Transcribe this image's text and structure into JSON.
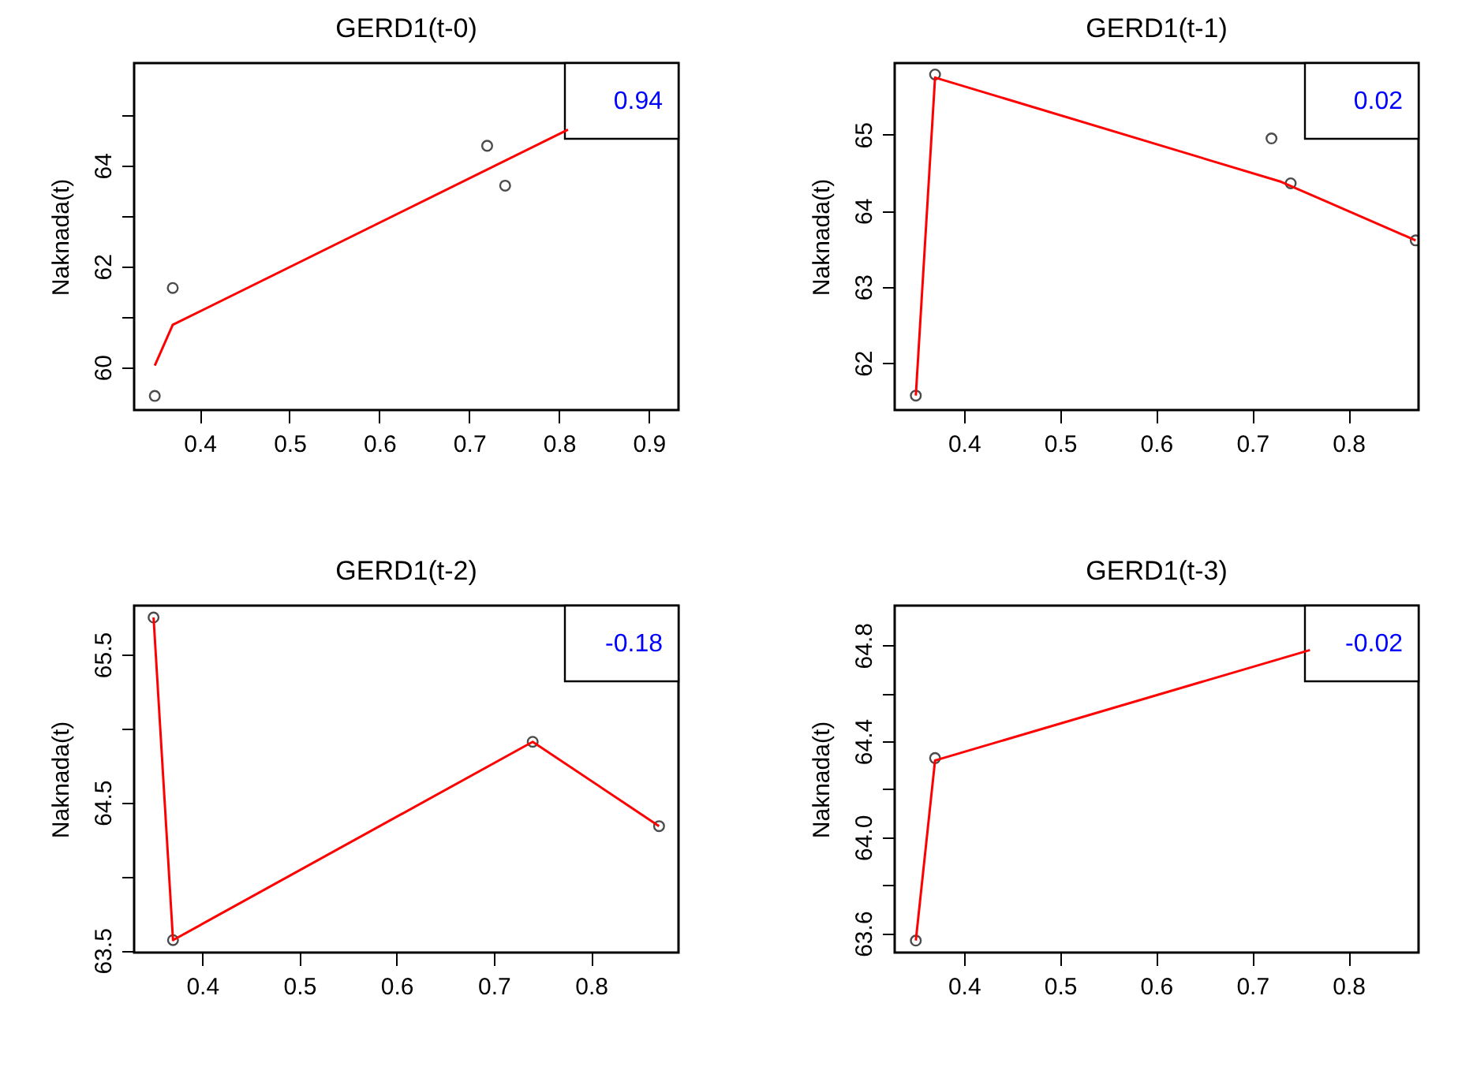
{
  "chart_data": [
    {
      "type": "line",
      "title": "GERD1(t-0)",
      "ylabel": "Naknada(t)",
      "xlim": [
        0.327,
        0.933
      ],
      "ylim": [
        59.15,
        66.03
      ],
      "xticks": [
        0.4,
        0.5,
        0.6,
        0.7,
        0.8,
        0.9
      ],
      "yticks": [
        60,
        {
          "value": 61,
          "label": null
        },
        62,
        {
          "value": 63,
          "label": null
        },
        64,
        {
          "value": 65,
          "label": null
        }
      ],
      "grid": false,
      "annotations": [
        "0.94"
      ],
      "series": [
        {
          "type": "scatter",
          "marker": "circle",
          "color": "#000000",
          "x": [
            0.35,
            0.37,
            0.72,
            0.74
          ],
          "values": [
            59.43,
            61.57,
            64.39,
            63.6
          ]
        },
        {
          "type": "line",
          "color": "#ff0000",
          "x": [
            0.35,
            0.37,
            0.81
          ],
          "values": [
            60.03,
            60.84,
            64.71
          ]
        }
      ]
    },
    {
      "type": "line",
      "title": "GERD1(t-1)",
      "ylabel": "Naknada(t)",
      "xlim": [
        0.328,
        0.873
      ],
      "ylim": [
        61.38,
        65.94
      ],
      "xticks": [
        0.4,
        0.5,
        0.6,
        0.7,
        0.8
      ],
      "yticks": [
        62,
        63,
        64,
        65
      ],
      "grid": false,
      "annotations": [
        "0.02"
      ],
      "series": [
        {
          "type": "scatter",
          "marker": "circle",
          "color": "#000000",
          "x": [
            0.35,
            0.37,
            0.72,
            0.74,
            0.87
          ],
          "values": [
            61.57,
            65.79,
            64.95,
            64.36,
            63.61
          ]
        },
        {
          "type": "line",
          "color": "#ff0000",
          "x": [
            0.35,
            0.37,
            0.73,
            0.87
          ],
          "values": [
            61.57,
            65.75,
            64.38,
            63.61
          ]
        }
      ]
    },
    {
      "type": "line",
      "title": "GERD1(t-2)",
      "ylabel": "Naknada(t)",
      "xlim": [
        0.33,
        0.89
      ],
      "ylim": [
        63.486,
        65.83
      ],
      "xticks": [
        0.4,
        0.5,
        0.6,
        0.7,
        0.8
      ],
      "yticks": [
        63.5,
        {
          "value": 64,
          "label": null
        },
        64.5,
        {
          "value": 65,
          "label": null
        },
        65.5
      ],
      "grid": false,
      "annotations": [
        "-0.18"
      ],
      "series": [
        {
          "type": "scatter",
          "marker": "circle",
          "color": "#000000",
          "x": [
            0.35,
            0.37,
            0.74,
            0.87
          ],
          "values": [
            65.75,
            63.57,
            64.91,
            64.34
          ]
        },
        {
          "type": "line",
          "color": "#ff0000",
          "x": [
            0.35,
            0.37,
            0.74,
            0.87
          ],
          "values": [
            65.75,
            63.57,
            64.91,
            64.34
          ]
        }
      ]
    },
    {
      "type": "line",
      "title": "GERD1(t-3)",
      "ylabel": "Naknada(t)",
      "xlim": [
        0.328,
        0.873
      ],
      "ylim": [
        63.52,
        64.965
      ],
      "xticks": [
        0.4,
        0.5,
        0.6,
        0.7,
        0.8
      ],
      "yticks": [
        {
          "value": 63.6,
          "label": "63.6"
        },
        {
          "value": 63.8,
          "label": null
        },
        {
          "value": 64.0,
          "label": "64.0"
        },
        {
          "value": 64.2,
          "label": null
        },
        {
          "value": 64.4,
          "label": "64.4"
        },
        {
          "value": 64.6,
          "label": null
        },
        {
          "value": 64.8,
          "label": "64.8"
        }
      ],
      "grid": false,
      "annotations": [
        "-0.02"
      ],
      "series": [
        {
          "type": "scatter",
          "marker": "circle",
          "color": "#000000",
          "x": [
            0.35,
            0.37
          ],
          "values": [
            63.57,
            64.33
          ]
        },
        {
          "type": "line",
          "color": "#ff0000",
          "x": [
            0.35,
            0.37,
            0.76
          ],
          "values": [
            63.57,
            64.32,
            64.78
          ]
        }
      ]
    }
  ]
}
